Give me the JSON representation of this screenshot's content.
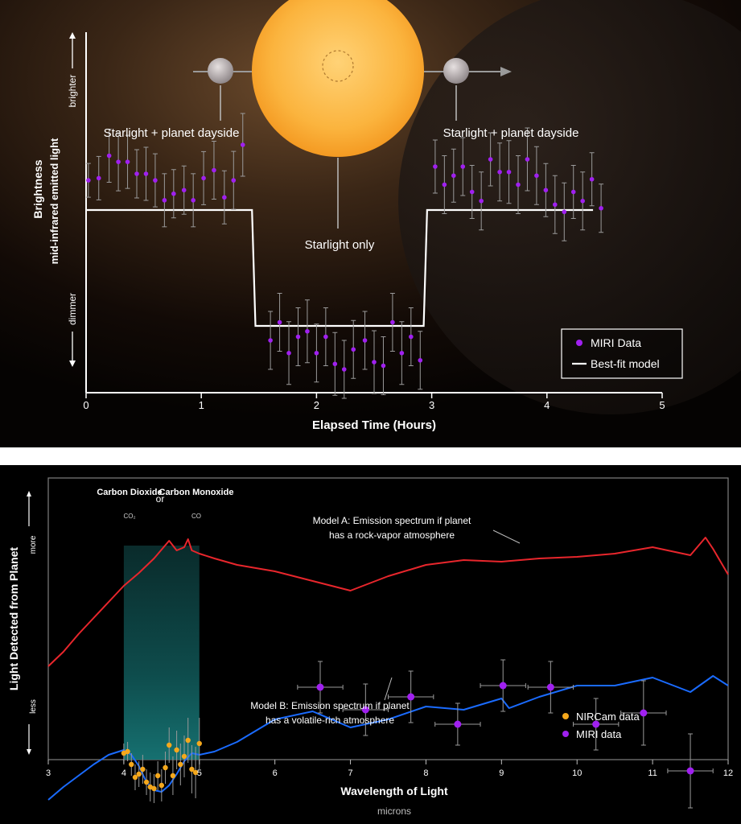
{
  "chart_data": [
    {
      "type": "scatter",
      "title": "",
      "xlabel": "Elapsed Time (Hours)",
      "ylabel": "Brightness",
      "ylabel_sub": "mid-infrared emitted light",
      "y_top_label": "brighter",
      "y_bottom_label": "dimmer",
      "xlim": [
        0,
        5
      ],
      "x_ticks": [
        "0",
        "1",
        "2",
        "3",
        "4",
        "5"
      ],
      "annotations": {
        "left": "Starlight + planet dayside",
        "right": "Starlight + planet dayside",
        "center": "Starlight only"
      },
      "legend_position": "bottom-right",
      "colors": {
        "data": "#a020f0",
        "model": "#ffffff",
        "star": "#f9b43a",
        "background": "#0b0604"
      },
      "series": [
        {
          "name": "MIRI Data",
          "points": [
            [
              0.02,
              0.82,
              0.07
            ],
            [
              0.11,
              0.88,
              0.09
            ],
            [
              0.2,
              1.5,
              0.11
            ],
            [
              0.28,
              1.33,
              0.12
            ],
            [
              0.36,
              1.33,
              0.11
            ],
            [
              0.44,
              1.0,
              0.1
            ],
            [
              0.52,
              1.0,
              0.11
            ],
            [
              0.6,
              0.82,
              0.11
            ],
            [
              0.68,
              0.27,
              0.11
            ],
            [
              0.76,
              0.45,
              0.1
            ],
            [
              0.85,
              0.55,
              0.1
            ],
            [
              0.93,
              0.27,
              0.11
            ],
            [
              1.02,
              0.88,
              0.11
            ],
            [
              1.11,
              1.1,
              0.12
            ],
            [
              1.2,
              0.35,
              0.11
            ],
            [
              1.28,
              0.82,
              0.12
            ],
            [
              1.36,
              1.8,
              0.13
            ],
            [
              1.6,
              -3.6,
              0.12
            ],
            [
              1.68,
              -3.1,
              0.12
            ],
            [
              1.76,
              -3.95,
              0.13
            ],
            [
              1.84,
              -3.5,
              0.12
            ],
            [
              1.92,
              -3.35,
              0.13
            ],
            [
              2.0,
              -3.95,
              0.12
            ],
            [
              2.08,
              -3.5,
              0.12
            ],
            [
              2.16,
              -4.25,
              0.13
            ],
            [
              2.24,
              -4.4,
              0.12
            ],
            [
              2.32,
              -3.85,
              0.12
            ],
            [
              2.42,
              -3.6,
              0.12
            ],
            [
              2.5,
              -4.2,
              0.13
            ],
            [
              2.58,
              -4.3,
              0.12
            ],
            [
              2.66,
              -3.1,
              0.12
            ],
            [
              2.74,
              -3.95,
              0.13
            ],
            [
              2.82,
              -3.5,
              0.12
            ],
            [
              2.9,
              -4.15,
              0.12
            ],
            [
              3.03,
              1.2,
              0.11
            ],
            [
              3.11,
              0.7,
              0.12
            ],
            [
              3.19,
              0.95,
              0.11
            ],
            [
              3.27,
              1.2,
              0.12
            ],
            [
              3.35,
              0.5,
              0.11
            ],
            [
              3.43,
              0.25,
              0.12
            ],
            [
              3.51,
              1.4,
              0.11
            ],
            [
              3.59,
              1.05,
              0.12
            ],
            [
              3.67,
              1.05,
              0.13
            ],
            [
              3.75,
              0.7,
              0.12
            ],
            [
              3.83,
              1.4,
              0.13
            ],
            [
              3.91,
              0.95,
              0.12
            ],
            [
              3.99,
              0.55,
              0.11
            ],
            [
              4.07,
              0.15,
              0.12
            ],
            [
              4.15,
              -0.05,
              0.12
            ],
            [
              4.23,
              0.5,
              0.11
            ],
            [
              4.31,
              0.25,
              0.12
            ],
            [
              4.39,
              0.85,
              0.11
            ],
            [
              4.47,
              0.05,
              0.1
            ]
          ]
        },
        {
          "name": "Best-fit model",
          "x": [
            0.0,
            1.44,
            1.47,
            2.93,
            2.96,
            4.4
          ],
          "y": [
            0.0,
            0.0,
            -3.2,
            -3.2,
            0.0,
            0.0
          ]
        }
      ]
    },
    {
      "type": "line",
      "title": "",
      "xlabel": "Wavelength of Light",
      "xlabel_sub": "microns",
      "ylabel": "Light Detected from Planet",
      "y_top_label": "more",
      "y_bottom_label": "less",
      "xlim": [
        3,
        12
      ],
      "x_ticks": [
        "3",
        "4",
        "5",
        "6",
        "7",
        "8",
        "9",
        "10",
        "11",
        "12"
      ],
      "highlight_band": {
        "range": [
          4,
          5
        ],
        "label_left": "Carbon Dioxide",
        "label_left_formula": "CO₂",
        "label_or": "or",
        "label_right": "Carbon Monoxide",
        "label_right_formula": "CO"
      },
      "annotations": {
        "model_a_line1": "Model A: Emission spectrum if planet",
        "model_a_line2": "has a rock-vapor atmosphere",
        "model_b_line1": "Model B: Emission spectrum if planet",
        "model_b_line2": "has a volatile-rich atmosphere"
      },
      "legend_position": "bottom-right",
      "colors": {
        "model_a": "#e8262c",
        "model_b": "#1a6bff",
        "nircam": "#f5a81c",
        "miri": "#a020f0",
        "band": "#0e4c4c"
      },
      "series": [
        {
          "name": "Model A",
          "x": [
            3.0,
            3.2,
            3.4,
            3.6,
            3.8,
            4.0,
            4.2,
            4.4,
            4.6,
            4.7,
            4.8,
            4.85,
            4.9,
            5.0,
            5.2,
            5.5,
            6.0,
            6.5,
            7.0,
            7.5,
            8.0,
            8.5,
            9.0,
            9.5,
            10.0,
            10.5,
            11.0,
            11.5,
            11.7,
            11.8,
            12.0
          ],
          "y": [
            0.0,
            0.9,
            2.0,
            3.0,
            4.0,
            5.0,
            5.8,
            6.7,
            7.8,
            7.2,
            7.4,
            7.9,
            7.2,
            7.0,
            6.7,
            6.3,
            5.9,
            5.3,
            4.7,
            5.6,
            6.3,
            6.6,
            6.5,
            6.7,
            6.8,
            7.0,
            7.4,
            6.9,
            8.0,
            7.3,
            5.7
          ]
        },
        {
          "name": "Model B",
          "x": [
            3.0,
            3.2,
            3.4,
            3.6,
            3.8,
            4.0,
            4.1,
            4.2,
            4.3,
            4.4,
            4.5,
            4.6,
            4.7,
            4.8,
            4.9,
            5.0,
            5.2,
            5.5,
            6.0,
            6.5,
            7.0,
            7.5,
            8.0,
            8.5,
            9.0,
            9.1,
            9.5,
            10.0,
            10.5,
            11.0,
            11.5,
            11.8,
            12.0
          ],
          "y": [
            -8.3,
            -7.5,
            -6.8,
            -6.1,
            -5.5,
            -5.2,
            -5.5,
            -6.2,
            -7.2,
            -7.7,
            -7.8,
            -7.4,
            -6.7,
            -5.9,
            -5.4,
            -5.5,
            -5.3,
            -4.7,
            -3.3,
            -2.8,
            -3.8,
            -3.3,
            -2.5,
            -2.7,
            -2.0,
            -2.6,
            -1.9,
            -1.2,
            -1.2,
            -0.7,
            -1.6,
            -0.6,
            -1.2
          ]
        },
        {
          "name": "NIRCam data",
          "points": [
            [
              4.0,
              -5.4,
              0.6
            ],
            [
              4.05,
              -5.3,
              0.6
            ],
            [
              4.1,
              -6.1,
              0.7
            ],
            [
              4.15,
              -6.9,
              0.8
            ],
            [
              4.2,
              -6.7,
              0.8
            ],
            [
              4.25,
              -6.4,
              0.9
            ],
            [
              4.3,
              -7.2,
              0.8
            ],
            [
              4.35,
              -7.5,
              0.9
            ],
            [
              4.4,
              -7.6,
              0.9
            ],
            [
              4.45,
              -6.8,
              0.9
            ],
            [
              4.5,
              -7.4,
              1.0
            ],
            [
              4.55,
              -6.3,
              1.0
            ],
            [
              4.6,
              -4.9,
              1.1
            ],
            [
              4.65,
              -6.8,
              1.2
            ],
            [
              4.7,
              -5.2,
              1.2
            ],
            [
              4.75,
              -6.1,
              1.3
            ],
            [
              4.8,
              -5.6,
              1.3
            ],
            [
              4.85,
              -4.6,
              1.4
            ],
            [
              4.9,
              -6.4,
              1.5
            ],
            [
              4.95,
              -6.6,
              1.6
            ],
            [
              5.0,
              -4.8,
              1.6
            ]
          ]
        },
        {
          "name": "MIRI data",
          "points": [
            [
              6.6,
              -1.3,
              0.3,
              1.6
            ],
            [
              7.2,
              -2.7,
              0.3,
              1.6
            ],
            [
              7.8,
              -1.9,
              0.3,
              1.6
            ],
            [
              8.42,
              -3.6,
              0.3,
              1.3
            ],
            [
              9.02,
              -1.2,
              0.3,
              1.6
            ],
            [
              9.65,
              -1.3,
              0.3,
              1.6
            ],
            [
              10.25,
              -3.6,
              0.3,
              1.6
            ],
            [
              10.88,
              -2.9,
              0.3,
              2.0
            ],
            [
              11.5,
              -6.5,
              0.3,
              2.3
            ]
          ]
        }
      ]
    }
  ]
}
